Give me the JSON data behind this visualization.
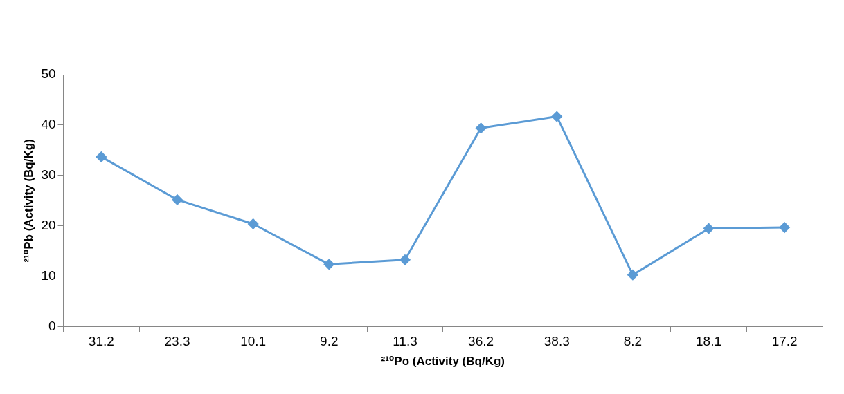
{
  "chart_data": {
    "type": "line",
    "xlabel": "²¹⁰Po (Activity (Bq/Kg)",
    "ylabel": "²¹⁰Pb (Activity (Bq/Kg)",
    "categories": [
      "31.2",
      "23.3",
      "10.1",
      "9.2",
      "11.3",
      "36.2",
      "38.3",
      "8.2",
      "18.1",
      "17.2"
    ],
    "series": [
      {
        "color": "#5b9bd5",
        "values": [
          33.7,
          25.2,
          20.4,
          12.4,
          13.3,
          39.4,
          41.7,
          10.3,
          19.5,
          19.7
        ]
      }
    ],
    "ylim": [
      0,
      50
    ],
    "yticks": [
      0,
      10,
      20,
      30,
      40,
      50
    ],
    "marker": "diamond",
    "line_style": "solid",
    "legend": false
  }
}
